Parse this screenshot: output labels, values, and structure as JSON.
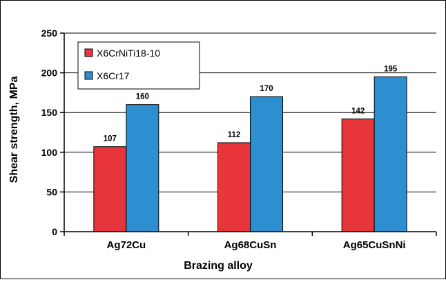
{
  "chart_data": {
    "type": "bar",
    "title": "",
    "xlabel": "Brazing alloy",
    "ylabel": "Shear strength, MPa",
    "ylim": [
      0,
      250
    ],
    "yticks": [
      0,
      50,
      100,
      150,
      200,
      250
    ],
    "grid": true,
    "legend": "top-left",
    "categories": [
      "Ag72Cu",
      "Ag68CuSn",
      "Ag65CuSnNi"
    ],
    "series": [
      {
        "name": "X6CrNiTi18-10",
        "color": "#e8353b",
        "values": [
          107,
          112,
          142
        ]
      },
      {
        "name": "X6Cr17",
        "color": "#2e8fd0",
        "values": [
          160,
          170,
          195
        ]
      }
    ]
  }
}
